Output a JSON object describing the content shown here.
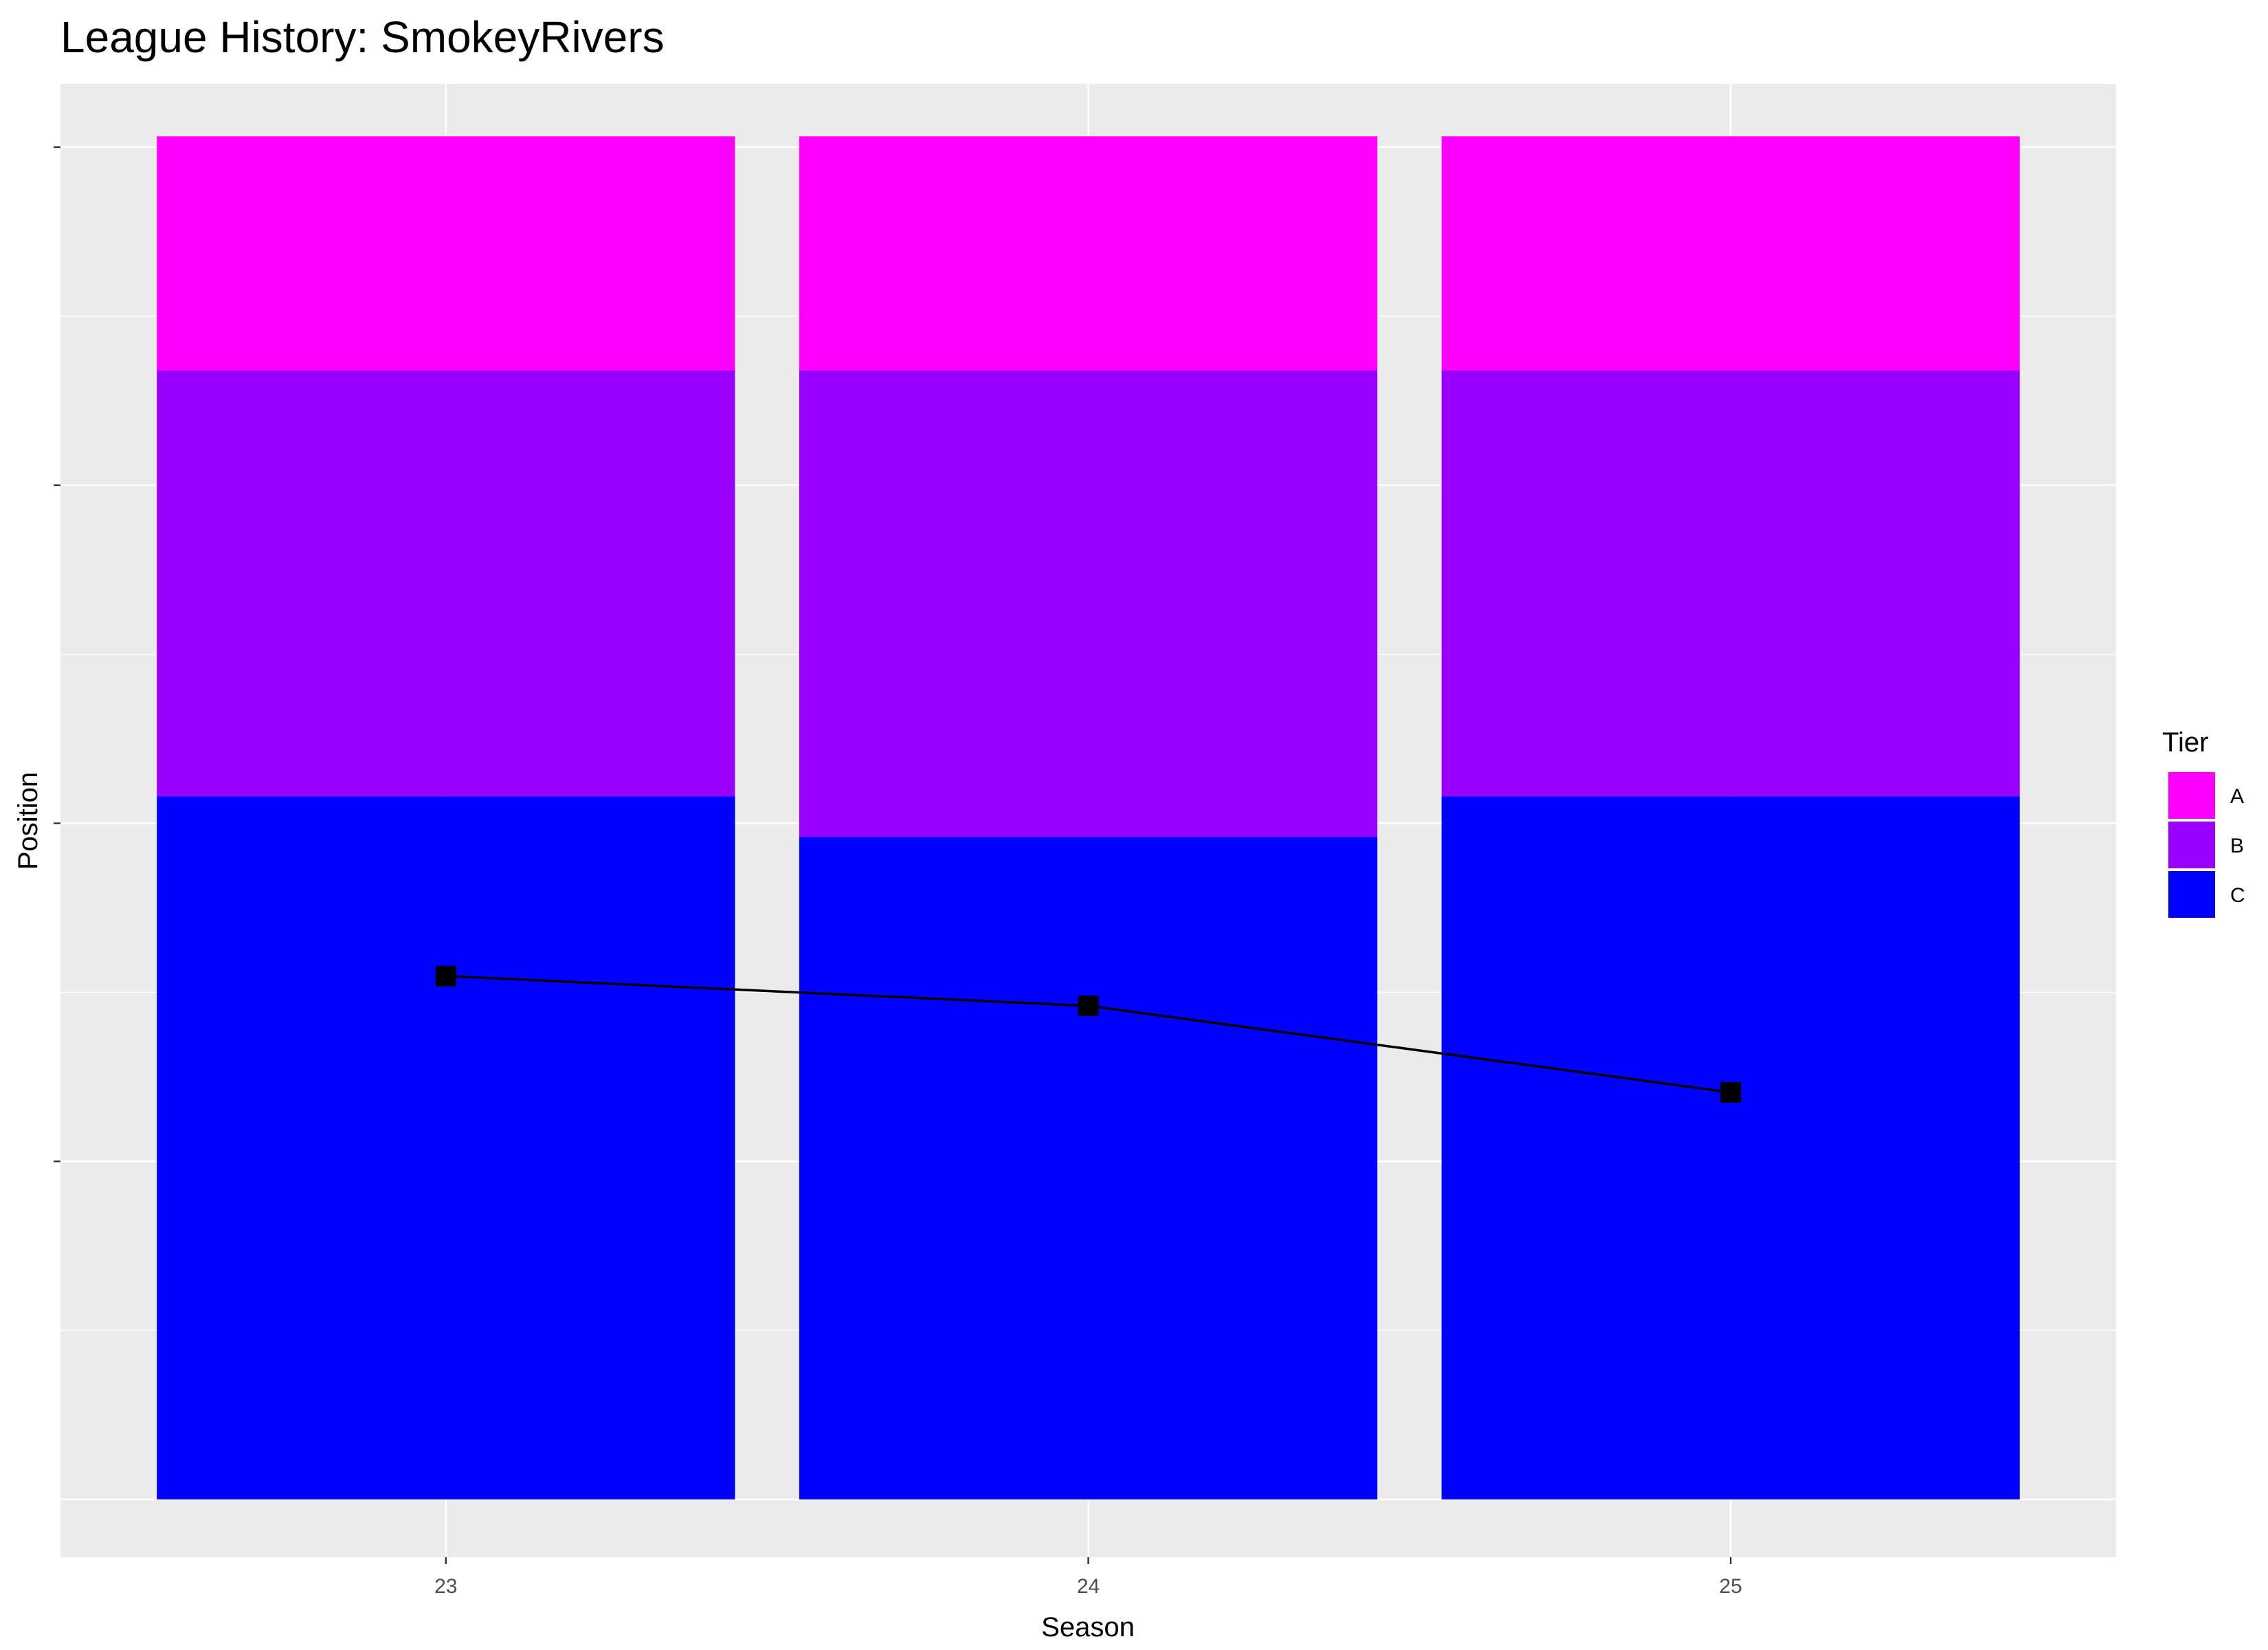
{
  "chart_data": {
    "type": "bar",
    "title": "League History: SmokeyRivers",
    "xlabel": "Season",
    "ylabel": "Position",
    "categories": [
      "23",
      "24",
      "25"
    ],
    "ylim": [
      0,
      100
    ],
    "y_ticks": [
      25,
      50,
      75,
      100
    ],
    "grid": true,
    "stacked": true,
    "series": [
      {
        "name": "C",
        "color": "#0000FF",
        "values": [
          52,
          49,
          52
        ]
      },
      {
        "name": "B",
        "color": "#9900FF",
        "values": [
          31.5,
          34.5,
          31.5
        ]
      },
      {
        "name": "A",
        "color": "#FF00FF",
        "values": [
          17.3,
          17.3,
          17.3
        ]
      }
    ],
    "line": {
      "name": "Position",
      "color": "#000000",
      "marker": "square",
      "values": [
        38.7,
        36.5,
        30.1
      ]
    },
    "legend": {
      "title": "Tier",
      "placement": "right",
      "entries": [
        {
          "label": "A",
          "color": "#FF00FF"
        },
        {
          "label": "B",
          "color": "#9900FF"
        },
        {
          "label": "C",
          "color": "#0000FF"
        }
      ]
    }
  }
}
